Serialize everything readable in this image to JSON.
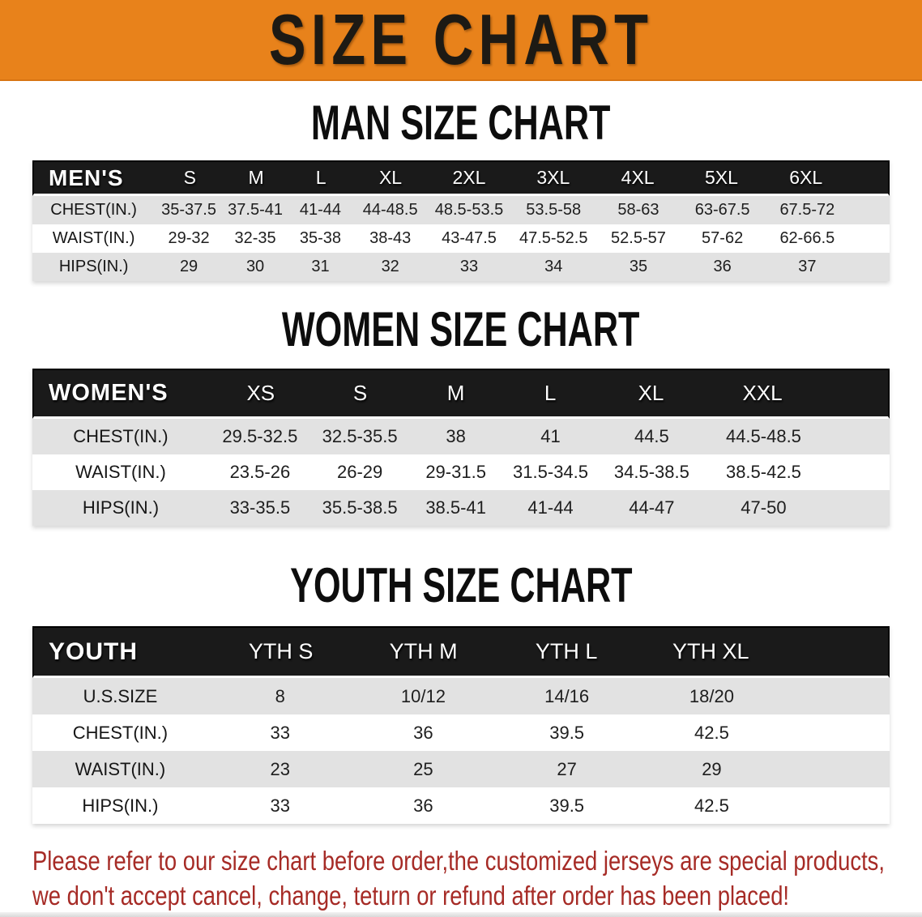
{
  "banner": {
    "title": "SIZE CHART"
  },
  "colors": {
    "banner_bg": "#E8821B",
    "table_header_bg": "#1A1A1A",
    "table_header_text": "#FFFFFF",
    "row_shade": "#E2E2E2",
    "disclaimer_text": "#A62B26"
  },
  "sections": {
    "men": {
      "title": "MAN SIZE CHART",
      "table": {
        "header": [
          "MEN'S",
          "S",
          "M",
          "L",
          "XL",
          "2XL",
          "3XL",
          "4XL",
          "5XL",
          "6XL"
        ],
        "rows": [
          [
            "CHEST(IN.)",
            "35-37.5",
            "37.5-41",
            "41-44",
            "44-48.5",
            "48.5-53.5",
            "53.5-58",
            "58-63",
            "63-67.5",
            "67.5-72"
          ],
          [
            "WAIST(IN.)",
            "29-32",
            "32-35",
            "35-38",
            "38-43",
            "43-47.5",
            "47.5-52.5",
            "52.5-57",
            "57-62",
            "62-66.5"
          ],
          [
            "HIPS(IN.)",
            "29",
            "30",
            "31",
            "32",
            "33",
            "34",
            "35",
            "36",
            "37"
          ]
        ]
      }
    },
    "women": {
      "title": "WOMEN SIZE CHART",
      "table": {
        "header": [
          "WOMEN'S",
          "XS",
          "S",
          "M",
          "L",
          "XL",
          "XXL"
        ],
        "rows": [
          [
            "CHEST(IN.)",
            "29.5-32.5",
            "32.5-35.5",
            "38",
            "41",
            "44.5",
            "44.5-48.5"
          ],
          [
            "WAIST(IN.)",
            "23.5-26",
            "26-29",
            "29-31.5",
            "31.5-34.5",
            "34.5-38.5",
            "38.5-42.5"
          ],
          [
            "HIPS(IN.)",
            "33-35.5",
            "35.5-38.5",
            "38.5-41",
            "41-44",
            "44-47",
            "47-50"
          ]
        ]
      }
    },
    "youth": {
      "title": "YOUTH SIZE CHART",
      "table": {
        "header": [
          "YOUTH",
          "YTH S",
          "YTH M",
          "YTH L",
          "YTH XL"
        ],
        "rows": [
          [
            "U.S.SIZE",
            "8",
            "10/12",
            "14/16",
            "18/20"
          ],
          [
            "CHEST(IN.)",
            "33",
            "36",
            "39.5",
            "42.5"
          ],
          [
            "WAIST(IN.)",
            "23",
            "25",
            "27",
            "29"
          ],
          [
            "HIPS(IN.)",
            "33",
            "36",
            "39.5",
            "42.5"
          ]
        ]
      }
    }
  },
  "disclaimer": {
    "line1": "Please refer to our size chart before order,the customized jerseys are special products,",
    "line2": "we don't accept cancel, change, teturn or refund after order has been placed!"
  }
}
